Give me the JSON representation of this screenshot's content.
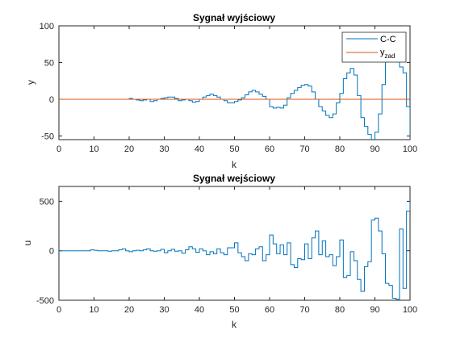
{
  "chart_data": [
    {
      "type": "line",
      "step": true,
      "title": "Sygnał wyjściowy",
      "xlabel": "k",
      "ylabel": "y",
      "xlim": [
        0,
        100
      ],
      "ylim": [
        -55,
        100
      ],
      "xticks": [
        0,
        10,
        20,
        30,
        40,
        50,
        60,
        70,
        80,
        90,
        100
      ],
      "yticks": [
        -50,
        0,
        50,
        100
      ],
      "legend": {
        "placement": "top-right",
        "entries": [
          "C-C",
          "y_zad"
        ],
        "main": [
          "C-C",
          "y"
        ],
        "sub": [
          "",
          "zad"
        ]
      },
      "series": [
        {
          "name": "C-C",
          "color": "#0072BD",
          "x": [
            0,
            1,
            2,
            3,
            4,
            5,
            6,
            7,
            8,
            9,
            10,
            11,
            12,
            13,
            14,
            15,
            16,
            17,
            18,
            19,
            20,
            21,
            22,
            23,
            24,
            25,
            26,
            27,
            28,
            29,
            30,
            31,
            32,
            33,
            34,
            35,
            36,
            37,
            38,
            39,
            40,
            41,
            42,
            43,
            44,
            45,
            46,
            47,
            48,
            49,
            50,
            51,
            52,
            53,
            54,
            55,
            56,
            57,
            58,
            59,
            60,
            61,
            62,
            63,
            64,
            65,
            66,
            67,
            68,
            69,
            70,
            71,
            72,
            73,
            74,
            75,
            76,
            77,
            78,
            79,
            80,
            81,
            82,
            83,
            84,
            85,
            86,
            87,
            88,
            89,
            90,
            91,
            92,
            93,
            94,
            95,
            96,
            97,
            98,
            99,
            100
          ],
          "values": [
            0,
            0,
            0,
            0,
            0,
            0,
            0,
            0,
            0,
            0,
            0,
            0,
            0,
            0,
            0,
            0,
            0,
            0,
            0,
            0,
            1,
            0,
            -1,
            -2,
            -1,
            0,
            -3,
            -2,
            0,
            1,
            2,
            3,
            3,
            1,
            -2,
            -1,
            0,
            -2,
            -4,
            -3,
            0,
            3,
            5,
            7,
            5,
            3,
            0,
            -2,
            -5,
            -5,
            -3,
            -1,
            2,
            6,
            10,
            12,
            10,
            7,
            4,
            0,
            -10,
            -12,
            -11,
            -12,
            -8,
            2,
            8,
            12,
            16,
            19,
            20,
            18,
            10,
            0,
            -10,
            -16,
            -22,
            -25,
            -20,
            -5,
            8,
            28,
            36,
            42,
            33,
            5,
            -25,
            -37,
            -48,
            -56,
            -45,
            -20,
            20,
            52,
            68,
            60,
            52,
            44,
            36,
            -10,
            -55
          ]
        },
        {
          "name": "y_zad",
          "color": "#D95319",
          "x": [
            0,
            100
          ],
          "values": [
            0,
            0
          ]
        }
      ]
    },
    {
      "type": "line",
      "step": true,
      "title": "Sygnał wejściowy",
      "xlabel": "k",
      "ylabel": "u",
      "xlim": [
        0,
        100
      ],
      "ylim": [
        -500,
        650
      ],
      "xticks": [
        0,
        10,
        20,
        30,
        40,
        50,
        60,
        70,
        80,
        90,
        100
      ],
      "yticks": [
        -500,
        0,
        500
      ],
      "series": [
        {
          "color": "#0072BD",
          "x": [
            0,
            1,
            2,
            3,
            4,
            5,
            6,
            7,
            8,
            9,
            10,
            11,
            12,
            13,
            14,
            15,
            16,
            17,
            18,
            19,
            20,
            21,
            22,
            23,
            24,
            25,
            26,
            27,
            28,
            29,
            30,
            31,
            32,
            33,
            34,
            35,
            36,
            37,
            38,
            39,
            40,
            41,
            42,
            43,
            44,
            45,
            46,
            47,
            48,
            49,
            50,
            51,
            52,
            53,
            54,
            55,
            56,
            57,
            58,
            59,
            60,
            61,
            62,
            63,
            64,
            65,
            66,
            67,
            68,
            69,
            70,
            71,
            72,
            73,
            74,
            75,
            76,
            77,
            78,
            79,
            80,
            81,
            82,
            83,
            84,
            85,
            86,
            87,
            88,
            89,
            90,
            91,
            92,
            93,
            94,
            95,
            96,
            97,
            98,
            99,
            100
          ],
          "values": [
            0,
            0,
            0,
            0,
            0,
            0,
            0,
            0,
            0,
            10,
            5,
            0,
            0,
            0,
            -5,
            0,
            0,
            10,
            20,
            0,
            -10,
            0,
            5,
            0,
            10,
            20,
            0,
            -5,
            0,
            15,
            -20,
            0,
            15,
            -5,
            0,
            -25,
            10,
            40,
            20,
            -15,
            20,
            0,
            -40,
            -10,
            -30,
            20,
            -20,
            -40,
            30,
            30,
            80,
            -20,
            -60,
            -100,
            -30,
            -40,
            20,
            40,
            -100,
            -40,
            160,
            70,
            -30,
            60,
            -40,
            80,
            -140,
            -170,
            -80,
            -90,
            70,
            -80,
            130,
            200,
            -40,
            100,
            -60,
            -40,
            -150,
            -60,
            110,
            -270,
            -250,
            -10,
            -100,
            -290,
            -410,
            -160,
            -110,
            310,
            330,
            200,
            -30,
            -330,
            -350,
            -480,
            -490,
            220,
            -380,
            400,
            500
          ]
        }
      ]
    }
  ]
}
